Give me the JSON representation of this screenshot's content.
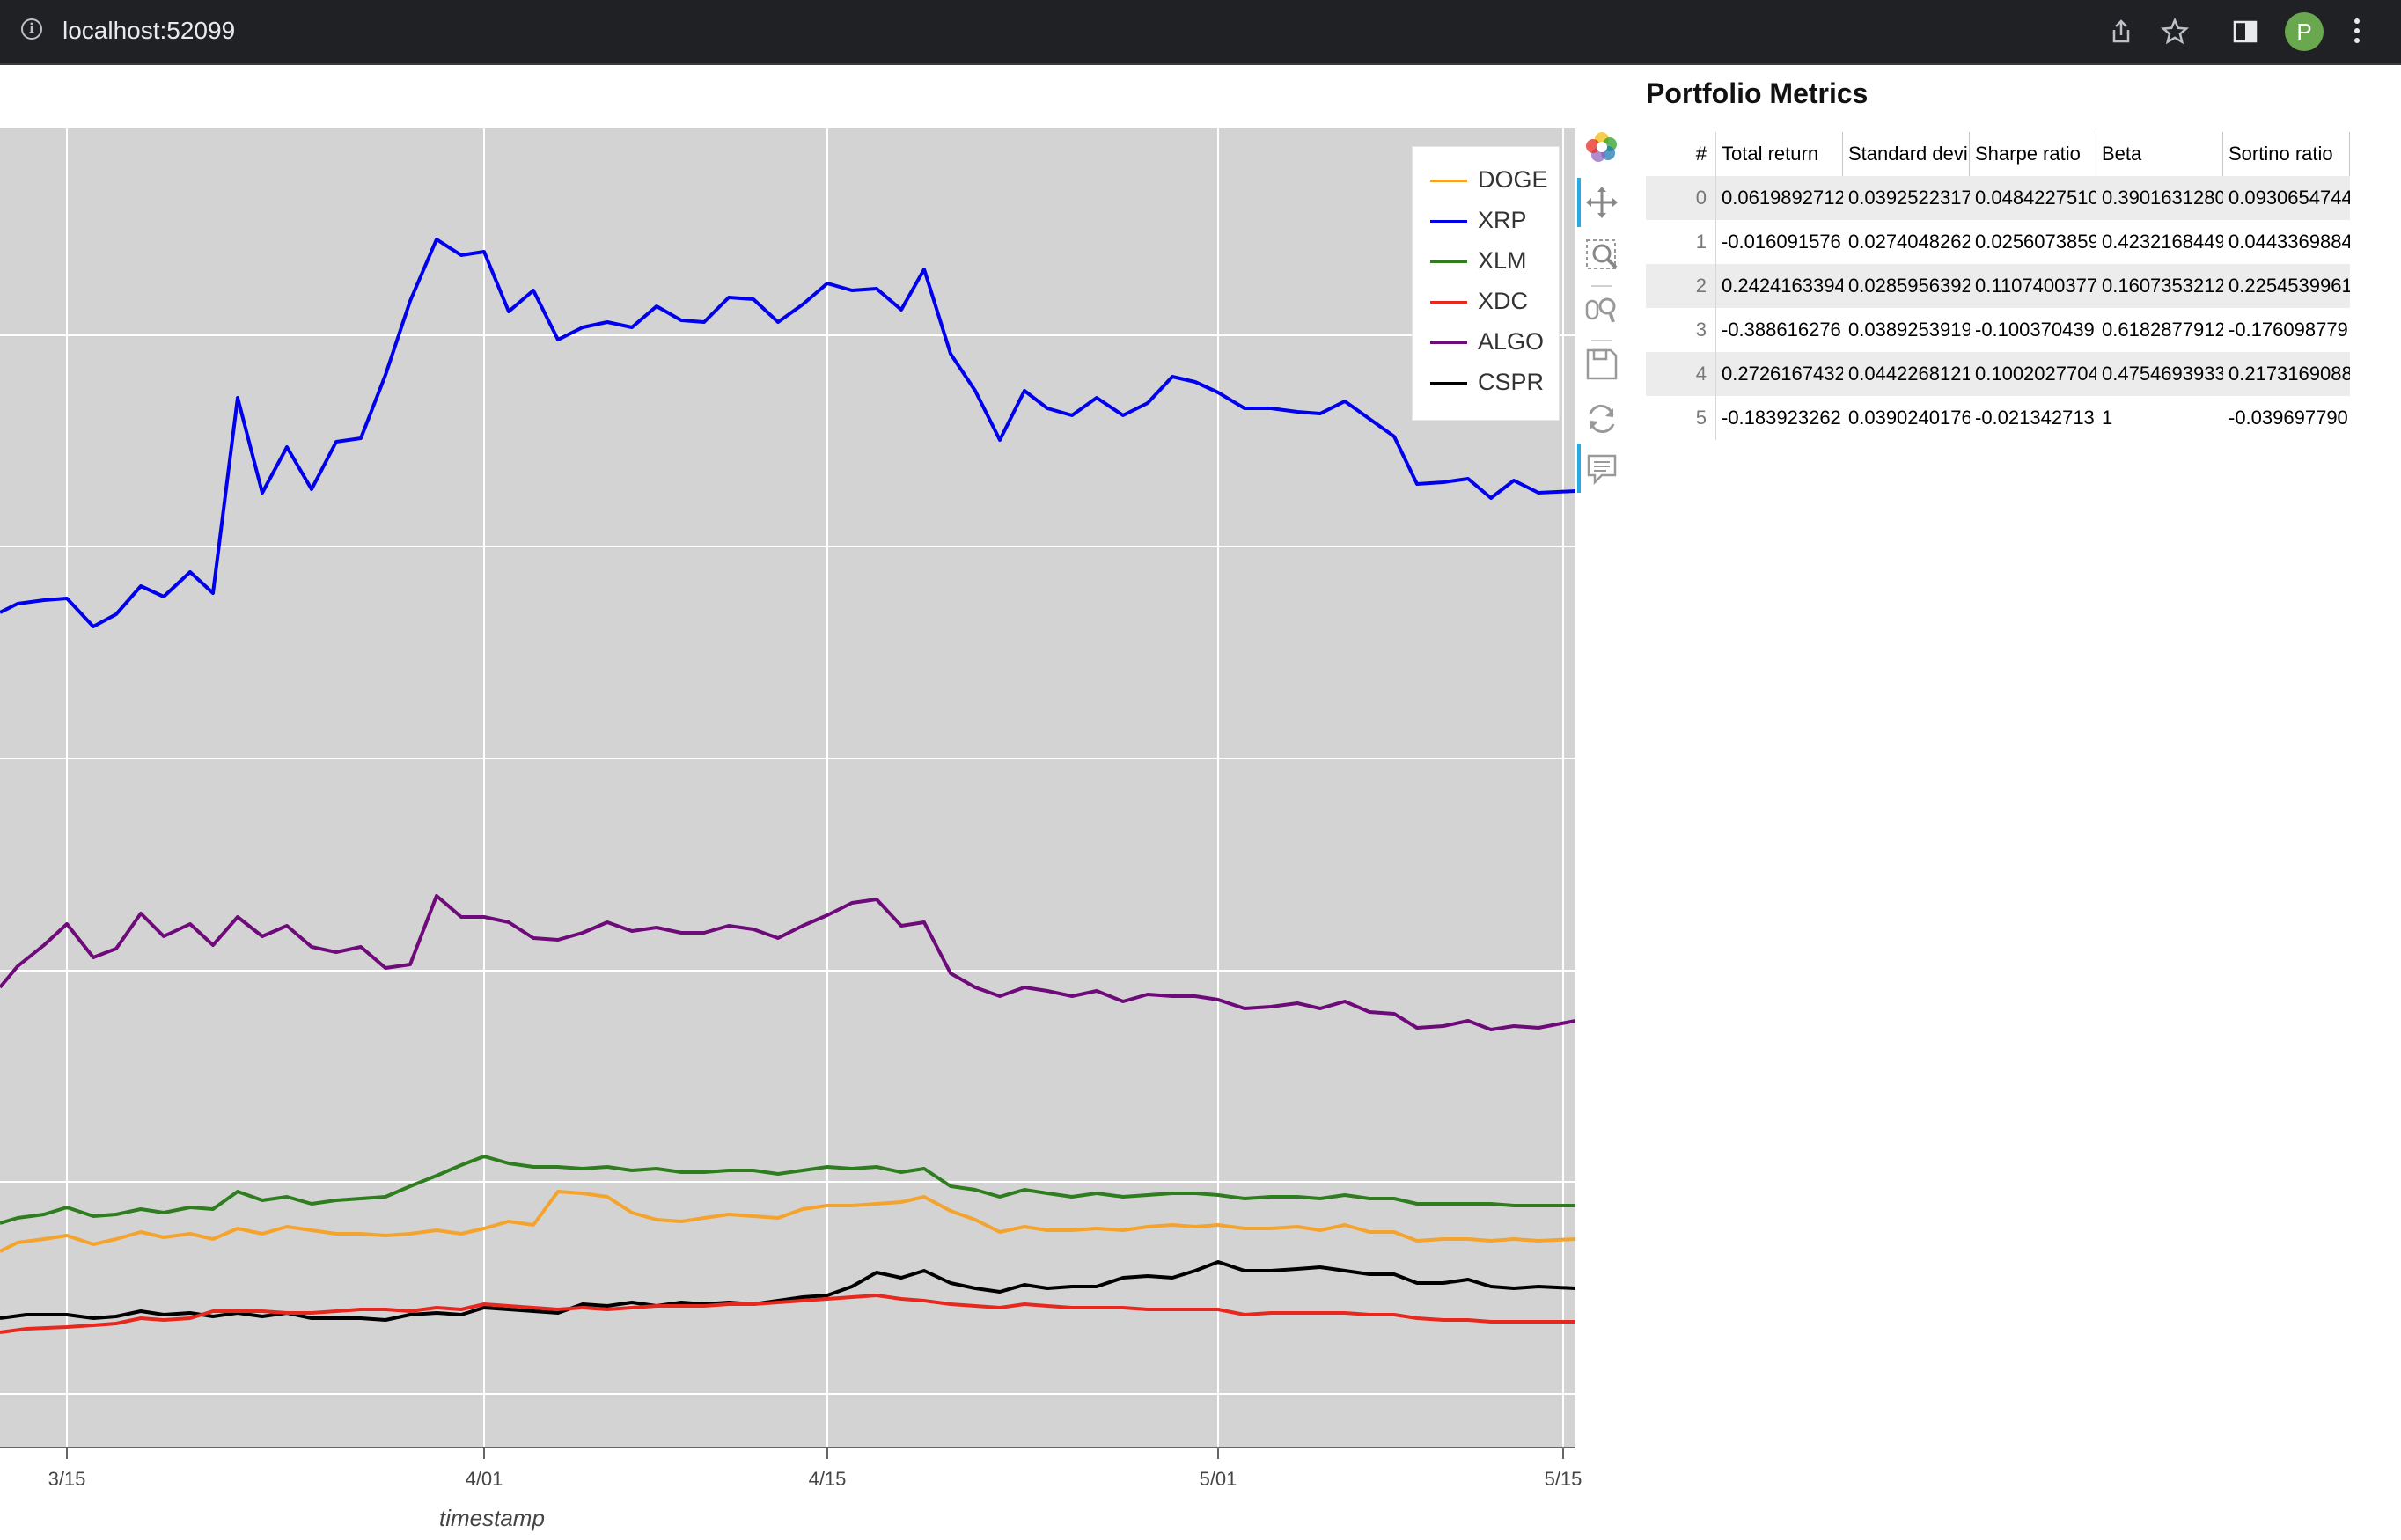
{
  "browser": {
    "url": "localhost:52099",
    "info_icon": "info-icon",
    "icons": [
      "share-icon",
      "star-icon",
      "sidebar-icon"
    ],
    "avatar_letter": "P"
  },
  "chart_data": {
    "type": "line",
    "xlabel": "timestamp",
    "x_tick_labels": [
      "3/15",
      "4/01",
      "4/15",
      "5/01",
      "5/15"
    ],
    "x_range": [
      "2022-03-12",
      "2022-05-15"
    ],
    "grid": true,
    "legend_placement": "top-right",
    "series": [
      {
        "name": "DOGE",
        "color": "#f4a32c"
      },
      {
        "name": "XRP",
        "color": "#0000ee"
      },
      {
        "name": "XLM",
        "color": "#2e7d1e"
      },
      {
        "name": "XDC",
        "color": "#e8281e"
      },
      {
        "name": "ALGO",
        "color": "#6e0a7a"
      },
      {
        "name": "CSPR",
        "color": "#000000"
      }
    ]
  },
  "toolbar": {
    "icons": [
      "bokeh-logo-icon",
      "pan-icon",
      "box-zoom-icon",
      "wheel-zoom-icon",
      "save-icon",
      "reset-icon",
      "hover-icon"
    ]
  },
  "table": {
    "title": "Portfolio Metrics",
    "columns": [
      "#",
      "Total return",
      "Standard devi",
      "Sharpe ratio",
      "Beta",
      "Sortino ratio"
    ],
    "rows": [
      [
        "0",
        "0.0619892712",
        "0.0392522317",
        "0.0484227510",
        "0.3901631280",
        "0.0930654744"
      ],
      [
        "1",
        "-0.016091576",
        "0.0274048262",
        "0.0256073859",
        "0.4232168449",
        "0.0443369884"
      ],
      [
        "2",
        "0.2424163394",
        "0.0285956392",
        "0.1107400377",
        "0.1607353212",
        "0.2254539961"
      ],
      [
        "3",
        "-0.388616276",
        "0.0389253919",
        "-0.100370439",
        "0.6182877912",
        "-0.176098779"
      ],
      [
        "4",
        "0.2726167432",
        "0.0442268121",
        "0.1002027704",
        "0.4754693933",
        "0.2173169088"
      ],
      [
        "5",
        "-0.183923262",
        "0.0390240176",
        "-0.021342713",
        "1",
        "-0.039697790"
      ]
    ]
  }
}
